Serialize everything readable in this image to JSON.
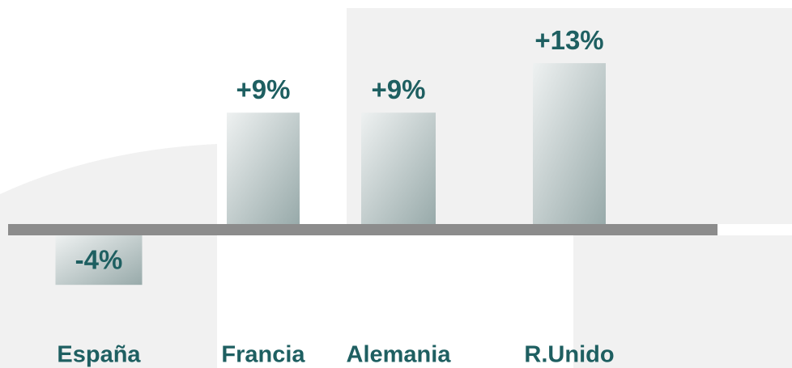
{
  "chart_data": {
    "type": "bar",
    "categories": [
      "España",
      "Francia",
      "Alemania",
      "R.Unido"
    ],
    "values": [
      -4,
      9,
      9,
      13
    ],
    "value_labels": [
      "-4%",
      "+9%",
      "+9%",
      "+13%"
    ]
  }
}
